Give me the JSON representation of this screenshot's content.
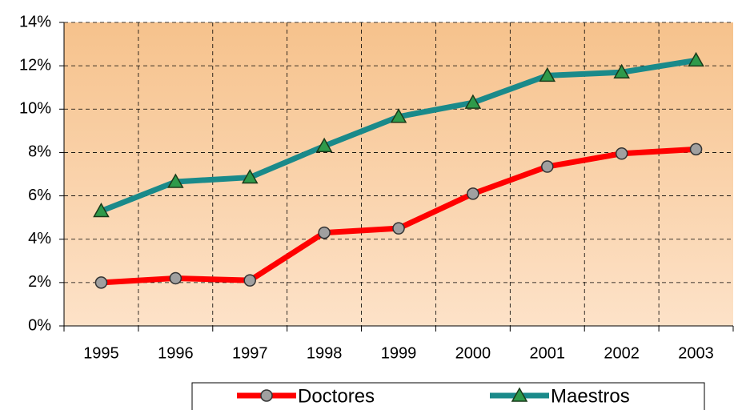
{
  "chart_data": {
    "type": "line",
    "categories": [
      "1995",
      "1996",
      "1997",
      "1998",
      "1999",
      "2000",
      "2001",
      "2002",
      "2003"
    ],
    "series": [
      {
        "name": "Doctores",
        "color": "#ff0000",
        "values": [
          2.0,
          2.2,
          2.1,
          4.3,
          4.5,
          6.1,
          7.35,
          7.95,
          8.15
        ]
      },
      {
        "name": "Maestros",
        "color": "#1a8a8a",
        "values": [
          5.3,
          6.65,
          6.85,
          8.3,
          9.65,
          10.3,
          11.55,
          11.7,
          12.25
        ]
      }
    ],
    "ylim": [
      0,
      14
    ],
    "yticks": [
      {
        "value": 0,
        "label": "0%"
      },
      {
        "value": 2,
        "label": "2%"
      },
      {
        "value": 4,
        "label": "4%"
      },
      {
        "value": 6,
        "label": "6%"
      },
      {
        "value": 8,
        "label": "8%"
      },
      {
        "value": 10,
        "label": "10%"
      },
      {
        "value": 12,
        "label": "12%"
      },
      {
        "value": 14,
        "label": "14%"
      }
    ],
    "grid": true,
    "legend": "bottom"
  }
}
